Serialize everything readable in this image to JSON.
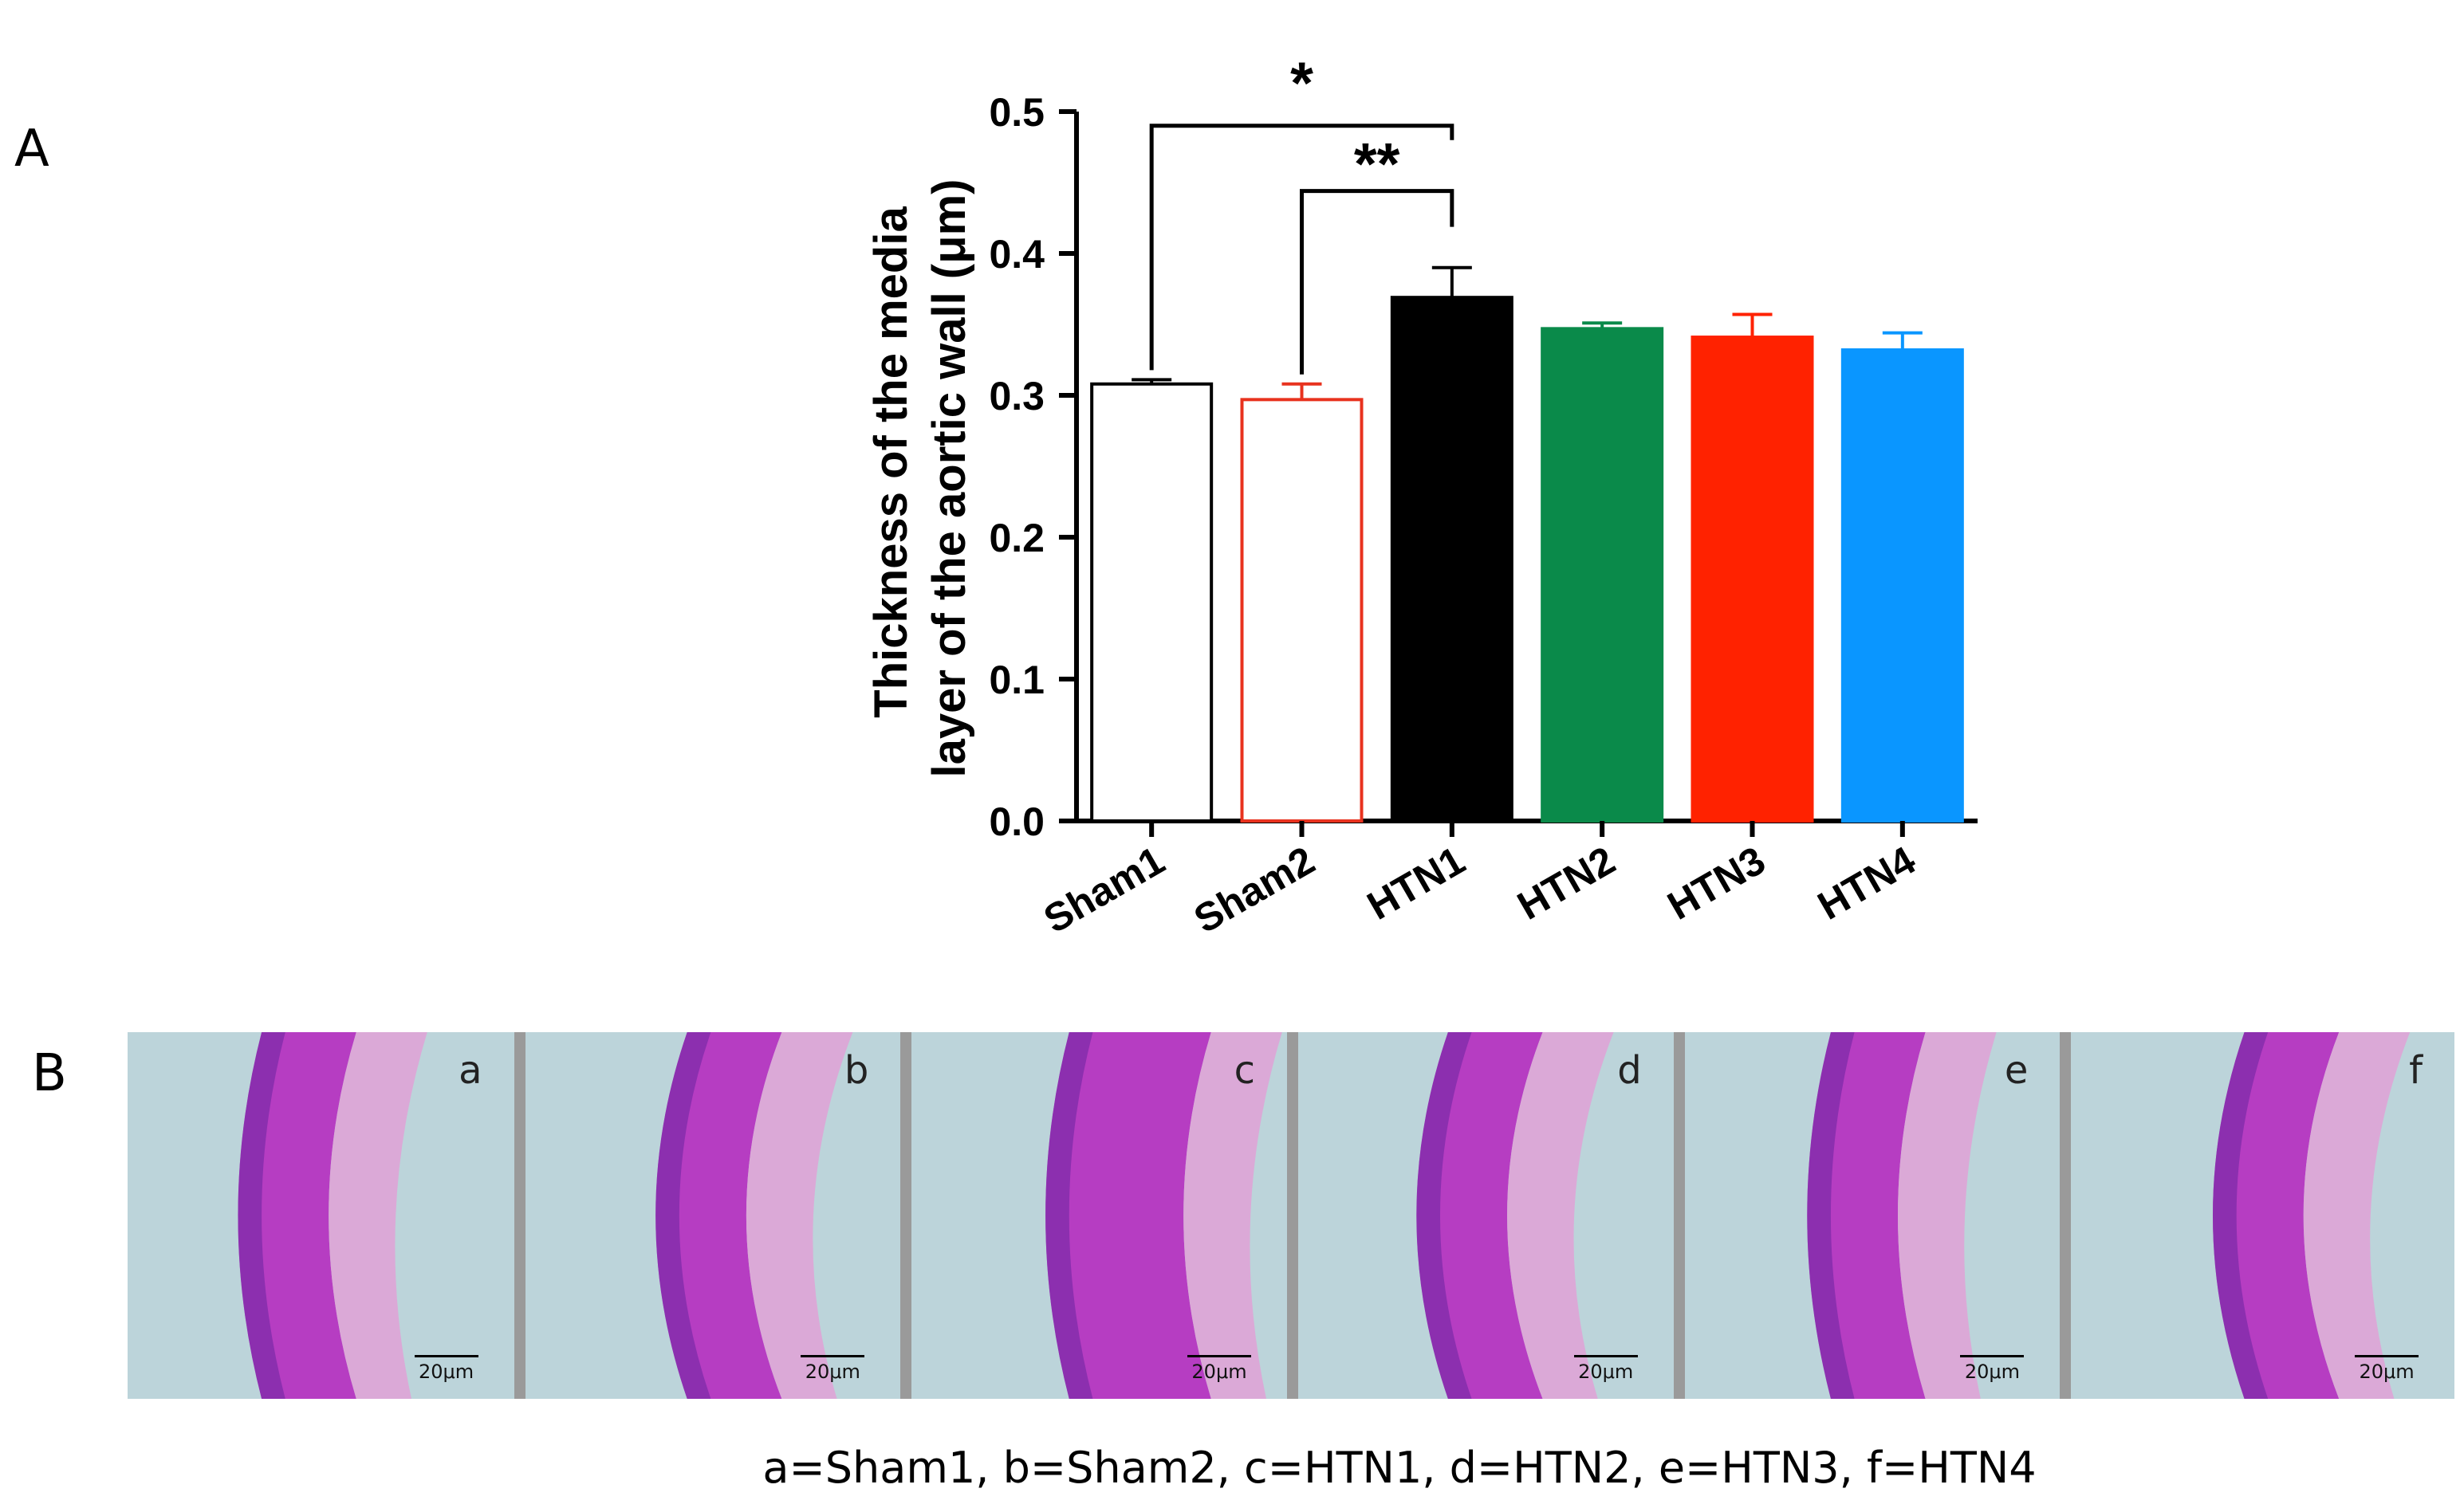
{
  "panel_a_letter": "A",
  "panel_b_letter": "B",
  "chart_data": {
    "type": "bar",
    "categories": [
      "Sham1",
      "Sham2",
      "HTN1",
      "HTN2",
      "HTN3",
      "HTN4"
    ],
    "values": [
      0.308,
      0.297,
      0.369,
      0.347,
      0.341,
      0.332
    ],
    "errors": [
      0.003,
      0.011,
      0.021,
      0.004,
      0.016,
      0.012
    ],
    "fills": [
      "#ffffff",
      "#ffffff",
      "#000000",
      "#0a8a4a",
      "#ff2200",
      "#0a96ff"
    ],
    "strokes": [
      "#000000",
      "#e8321e",
      "#000000",
      "#0a8a4a",
      "#ff2200",
      "#0a96ff"
    ],
    "ylabel_line1": "Thickness of the media",
    "ylabel_line2": "layer of the aortic wall  (μm)",
    "ylim": [
      0,
      0.5
    ],
    "yticks": [
      "0.0",
      "0.1",
      "0.2",
      "0.3",
      "0.4",
      "0.5"
    ],
    "significance": [
      {
        "from": "Sham1",
        "to": "HTN1",
        "label": "*"
      },
      {
        "from": "Sham2",
        "to": "HTN1",
        "label": "**"
      }
    ]
  },
  "micrographs": [
    {
      "letter": "a",
      "scale": "20μm"
    },
    {
      "letter": "b",
      "scale": "20μm"
    },
    {
      "letter": "c",
      "scale": "20μm"
    },
    {
      "letter": "d",
      "scale": "20μm"
    },
    {
      "letter": "e",
      "scale": "20μm"
    },
    {
      "letter": "f",
      "scale": "20μm"
    }
  ],
  "caption": "a=Sham1, b=Sham2, c=HTN1, d=HTN2, e=HTN3, f=HTN4"
}
